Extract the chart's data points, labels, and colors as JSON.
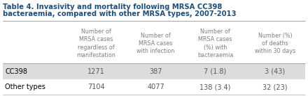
{
  "title_line1": "Table 4. Invasivity and mortality following MRSA CC398",
  "title_line2": "bacteraemia, compared with other MRSA types, 2007-2013",
  "title_color": "#1F4E79",
  "col_headers": [
    "Number of\nMRSA cases\nregardless of\nmanifestation",
    "Number of\nMRSA cases\nwith infection",
    "Number of\nMRSA cases\n(%) with\nbacteraemia",
    "Number (%)\nof deaths\nwithin 30 days"
  ],
  "row_labels": [
    "CC398",
    "Other types"
  ],
  "row_data": [
    [
      "1271",
      "387",
      "7 (1.8)",
      "3 (43)"
    ],
    [
      "7104",
      "4077",
      "138 (3.4)",
      "32 (23)"
    ]
  ],
  "row_bg_colors": [
    "#DCDCDC",
    "#FFFFFF"
  ],
  "col_label_color": "#7F7F7F",
  "row_label_color": "#000000",
  "data_color": "#595959",
  "border_color": "#AAAAAA",
  "font_size_title": 7.2,
  "font_size_header": 5.8,
  "font_size_data": 7.0,
  "figsize": [
    4.4,
    1.38
  ],
  "dpi": 100
}
